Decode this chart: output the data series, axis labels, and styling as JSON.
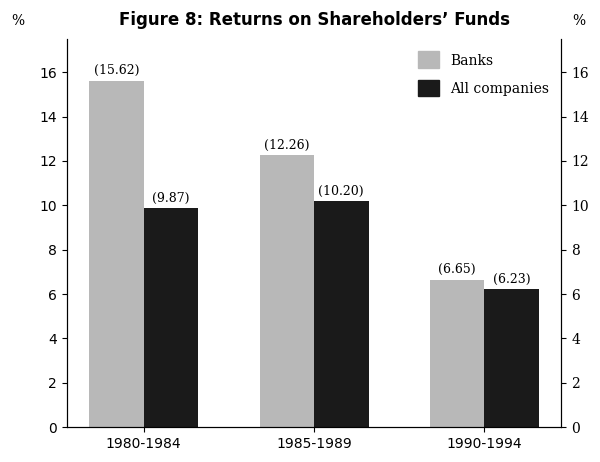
{
  "title": "Figure 8: Returns on Shareholders’ Funds",
  "categories": [
    "1980-1984",
    "1985-1989",
    "1990-1994"
  ],
  "banks": [
    15.62,
    12.26,
    6.65
  ],
  "companies": [
    9.87,
    10.2,
    6.23
  ],
  "bank_color": "#b8b8b8",
  "company_color": "#1a1a1a",
  "bar_width": 0.32,
  "ylim": [
    0,
    17.5
  ],
  "yticks": [
    0,
    2,
    4,
    6,
    8,
    10,
    12,
    14,
    16
  ],
  "legend_labels": [
    "Banks",
    "All companies"
  ],
  "background_color": "#ffffff",
  "title_fontsize": 12,
  "label_fontsize": 10,
  "tick_fontsize": 10,
  "annotation_fontsize": 9
}
